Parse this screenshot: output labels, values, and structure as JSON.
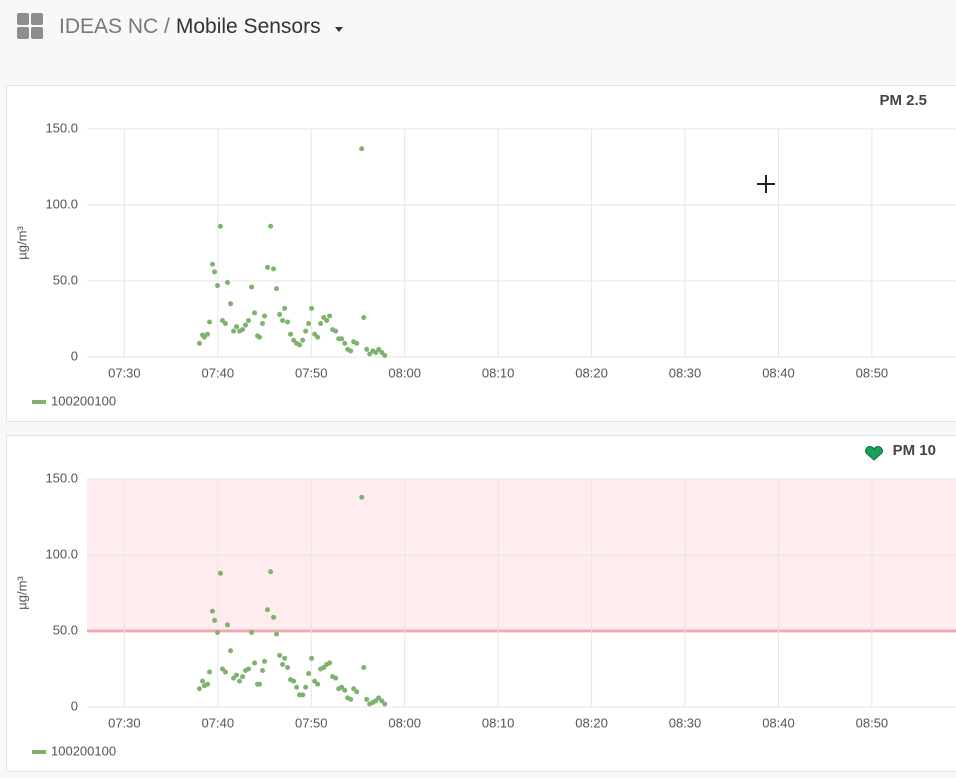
{
  "header": {
    "org": "IDEAS NC /",
    "title": "Mobile Sensors"
  },
  "chart_data": [
    {
      "type": "scatter",
      "title": "PM 2.5",
      "ylabel": "µg/m³",
      "x": [
        "07:38:02",
        "07:38:22",
        "07:38:34",
        "07:38:54",
        "07:39:07",
        "07:39:26",
        "07:39:39",
        "07:39:58",
        "07:40:17",
        "07:40:30",
        "07:40:49",
        "07:41:02",
        "07:41:22",
        "07:41:41",
        "07:42:00",
        "07:42:19",
        "07:42:39",
        "07:42:58",
        "07:43:17",
        "07:43:37",
        "07:43:56",
        "07:44:15",
        "07:44:28",
        "07:44:47",
        "07:45:00",
        "07:45:19",
        "07:45:39",
        "07:45:58",
        "07:46:17",
        "07:46:37",
        "07:46:56",
        "07:47:09",
        "07:47:28",
        "07:47:47",
        "07:48:07",
        "07:48:26",
        "07:48:45",
        "07:49:05",
        "07:49:24",
        "07:49:43",
        "07:50:02",
        "07:50:22",
        "07:50:41",
        "07:51:00",
        "07:51:20",
        "07:51:39",
        "07:51:58",
        "07:52:17",
        "07:52:37",
        "07:52:56",
        "07:53:15",
        "07:53:35",
        "07:53:54",
        "07:54:13",
        "07:54:32",
        "07:54:52",
        "07:55:24",
        "07:55:37",
        "07:55:56",
        "07:56:15",
        "07:56:35",
        "07:56:54",
        "07:57:13",
        "07:57:33",
        "07:57:52"
      ],
      "series": [
        {
          "name": "100200100",
          "color": "#7eb26d",
          "values": [
            9,
            14.5,
            13,
            15,
            23,
            61,
            56,
            47,
            86,
            24,
            22,
            49,
            35,
            17,
            20,
            17,
            18,
            21,
            24,
            46,
            29,
            14,
            13,
            22,
            27,
            59,
            86,
            58,
            45,
            28,
            24,
            32,
            23,
            15,
            11,
            9,
            8,
            11,
            17,
            22,
            32,
            15,
            13,
            22,
            26,
            24,
            27,
            18,
            17,
            12,
            12,
            9,
            5,
            4,
            10,
            9,
            137,
            26,
            5,
            2,
            4,
            3,
            5,
            3,
            1
          ]
        }
      ],
      "xlim": [
        "07:26",
        "08:59"
      ],
      "xticks": [
        "07:30",
        "07:40",
        "07:50",
        "08:00",
        "08:10",
        "08:20",
        "08:30",
        "08:40",
        "08:50"
      ],
      "ylim": [
        0,
        150
      ],
      "yticks": [
        0,
        {
          "value": 50,
          "label": "50.0"
        },
        {
          "value": 100,
          "label": "100.0"
        },
        {
          "value": 150,
          "label": "150.0"
        }
      ],
      "grid": true,
      "legend": "bottom-left"
    },
    {
      "type": "scatter",
      "title": "PM 10",
      "ylabel": "µg/m³",
      "x": [
        "07:38:02",
        "07:38:22",
        "07:38:34",
        "07:38:54",
        "07:39:07",
        "07:39:26",
        "07:39:39",
        "07:39:58",
        "07:40:17",
        "07:40:30",
        "07:40:49",
        "07:41:02",
        "07:41:22",
        "07:41:41",
        "07:42:00",
        "07:42:19",
        "07:42:39",
        "07:42:58",
        "07:43:17",
        "07:43:37",
        "07:43:56",
        "07:44:15",
        "07:44:28",
        "07:44:47",
        "07:45:00",
        "07:45:19",
        "07:45:39",
        "07:45:58",
        "07:46:17",
        "07:46:37",
        "07:46:56",
        "07:47:09",
        "07:47:28",
        "07:47:47",
        "07:48:07",
        "07:48:26",
        "07:48:45",
        "07:49:05",
        "07:49:24",
        "07:49:43",
        "07:50:02",
        "07:50:22",
        "07:50:41",
        "07:51:00",
        "07:51:20",
        "07:51:39",
        "07:51:58",
        "07:52:17",
        "07:52:37",
        "07:52:56",
        "07:53:15",
        "07:53:35",
        "07:53:54",
        "07:54:13",
        "07:54:32",
        "07:54:52",
        "07:55:24",
        "07:55:37",
        "07:55:56",
        "07:56:15",
        "07:56:35",
        "07:56:54",
        "07:57:13",
        "07:57:33",
        "07:57:52"
      ],
      "series": [
        {
          "name": "100200100",
          "color": "#7eb26d",
          "values": [
            12,
            17,
            14,
            15,
            23,
            63,
            57,
            49,
            88,
            25,
            23,
            54,
            37,
            19,
            21,
            17,
            20,
            24,
            25,
            49,
            29,
            15,
            15,
            24,
            30,
            64,
            89,
            59,
            48,
            34,
            28,
            32,
            26,
            18,
            17,
            13,
            8,
            8,
            13,
            22,
            32,
            17,
            15,
            25,
            26,
            28,
            29,
            20,
            19,
            12,
            13,
            11,
            6,
            5,
            12,
            10,
            138,
            26,
            5,
            2,
            3,
            4,
            6,
            4,
            2
          ]
        }
      ],
      "xlim": [
        "07:26",
        "08:59"
      ],
      "xticks": [
        "07:30",
        "07:40",
        "07:50",
        "08:00",
        "08:10",
        "08:20",
        "08:30",
        "08:40",
        "08:50"
      ],
      "ylim": [
        0,
        150
      ],
      "yticks": [
        0,
        {
          "value": 50,
          "label": "50.0"
        },
        {
          "value": 100,
          "label": "100.0"
        },
        {
          "value": 150,
          "label": "150.0"
        }
      ],
      "grid": true,
      "legend": "bottom-left",
      "threshold": 50,
      "threshold_color": "#f2495c"
    }
  ]
}
